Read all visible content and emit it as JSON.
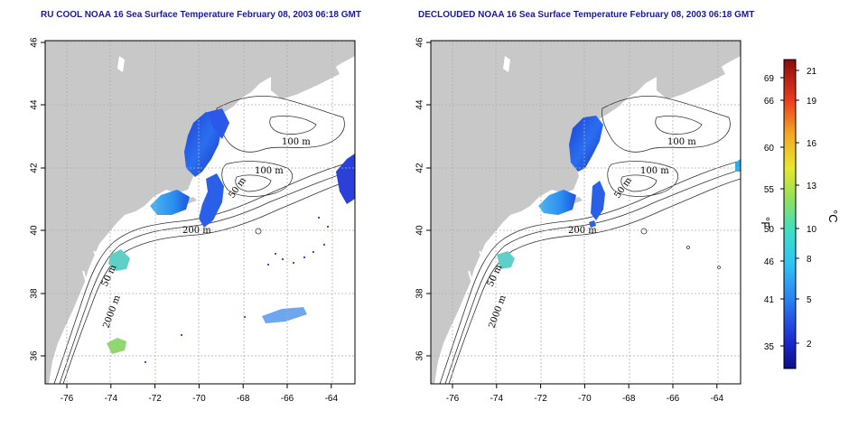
{
  "panels": [
    {
      "title": "RU COOL NOAA 16 Sea Surface Temperature February 08, 2003 06:18 GMT",
      "contour_labels": [
        "100 m",
        "100 m",
        "50 m",
        "200 m",
        "50 m",
        "2000 m"
      ],
      "clouded": true
    },
    {
      "title": "DECLOUDED NOAA 16 Sea Surface Temperature February 08, 2003 06:18 GMT",
      "contour_labels": [
        "100 m",
        "100 m",
        "50 m",
        "200 m",
        "50 m",
        "2000 m"
      ],
      "clouded": false
    }
  ],
  "axes": {
    "x_ticks": [
      "-76",
      "-74",
      "-72",
      "-70",
      "-68",
      "-66",
      "-64"
    ],
    "y_ticks": [
      "36",
      "38",
      "40",
      "42",
      "44",
      "46"
    ]
  },
  "colorbar": {
    "fahrenheit_ticks": [
      "69",
      "66",
      "60",
      "55",
      "50",
      "46",
      "41",
      "35"
    ],
    "celsius_ticks": [
      "21",
      "19",
      "16",
      "13",
      "10",
      "8",
      "5",
      "2"
    ],
    "fahrenheit_unit": "°F",
    "celsius_unit": "°C"
  },
  "colors": {
    "land": "#c8c8c8",
    "ocean": "#ffffff",
    "title": "#1a1a99",
    "grid": "#b0b0b0"
  }
}
